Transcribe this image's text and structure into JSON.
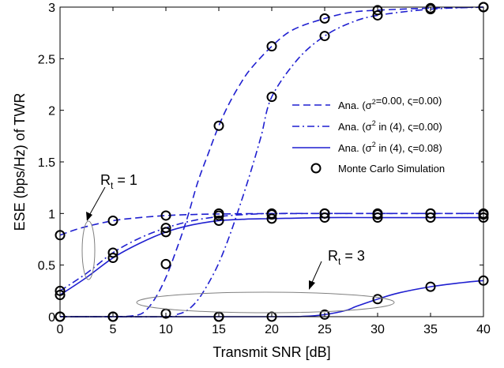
{
  "chart_data": {
    "type": "line",
    "title": "",
    "xlabel": "Transmit SNR [dB]",
    "ylabel": "ESE (bps/Hz) of TWR",
    "xlim": [
      0,
      40
    ],
    "ylim": [
      0,
      3
    ],
    "xticks": [
      0,
      5,
      10,
      15,
      20,
      25,
      30,
      35,
      40
    ],
    "yticks": [
      0,
      0.5,
      1,
      1.5,
      2,
      2.5,
      3
    ],
    "grid": false,
    "legend_position": "right",
    "line_color": "#1f1fd0",
    "marker_color": "#000000",
    "series": [
      {
        "name": "Ana. (σ²=0.00, ς=0.00)",
        "style": "dashed",
        "group": "Rt = 1",
        "x": [
          0,
          2,
          5,
          7.5,
          10,
          12.5,
          15,
          17.5,
          20,
          25,
          30,
          35,
          40
        ],
        "y": [
          0.79,
          0.86,
          0.93,
          0.96,
          0.98,
          0.99,
          0.995,
          0.998,
          0.999,
          1.0,
          1.0,
          1.0,
          1.0
        ]
      },
      {
        "name": "Ana. (σ² in (4), ς=0.00)",
        "style": "dashdot",
        "group": "Rt = 1",
        "x": [
          0,
          2.5,
          5,
          7.5,
          10,
          12.5,
          15,
          17.5,
          20,
          25,
          30,
          35,
          40
        ],
        "y": [
          0.25,
          0.42,
          0.62,
          0.76,
          0.86,
          0.93,
          0.97,
          0.99,
          1.0,
          1.0,
          1.0,
          1.0,
          1.0
        ]
      },
      {
        "name": "Ana. (σ² in (4), ς=0.08)",
        "style": "solid",
        "group": "Rt = 1",
        "x": [
          0,
          2.5,
          5,
          7.5,
          10,
          12.5,
          15,
          17.5,
          20,
          25,
          30,
          35,
          40
        ],
        "y": [
          0.21,
          0.38,
          0.57,
          0.71,
          0.82,
          0.89,
          0.93,
          0.945,
          0.95,
          0.96,
          0.96,
          0.96,
          0.96
        ]
      },
      {
        "name": "Ana. (σ²=0.00, ς=0.00)",
        "style": "dashed",
        "group": "Rt = 3",
        "x": [
          0,
          5,
          7,
          8,
          9,
          10,
          11,
          12,
          13,
          14,
          15,
          16,
          17,
          18,
          20,
          22,
          25,
          27.5,
          30,
          35,
          40
        ],
        "y": [
          0,
          0,
          0.01,
          0.05,
          0.18,
          0.38,
          0.65,
          0.95,
          1.3,
          1.58,
          1.85,
          2.07,
          2.25,
          2.4,
          2.62,
          2.78,
          2.89,
          2.95,
          2.97,
          2.99,
          3.0
        ]
      },
      {
        "name": "Ana. (σ² in (4), ς=0.00)",
        "style": "dashdot",
        "group": "Rt = 3",
        "x": [
          0,
          10,
          11,
          12,
          13,
          14,
          15,
          16,
          17,
          18,
          19,
          20,
          22.5,
          25,
          27.5,
          30,
          35,
          40
        ],
        "y": [
          0,
          0,
          0.02,
          0.06,
          0.16,
          0.32,
          0.52,
          0.78,
          1.08,
          1.4,
          1.75,
          2.13,
          2.5,
          2.72,
          2.85,
          2.92,
          2.98,
          3.0
        ]
      },
      {
        "name": "Ana. (σ² in (4), ς=0.08)",
        "style": "solid",
        "group": "Rt = 3",
        "x": [
          0,
          20,
          23,
          25,
          27,
          28,
          30,
          32,
          35,
          38,
          40
        ],
        "y": [
          0,
          0,
          0.003,
          0.02,
          0.06,
          0.1,
          0.17,
          0.23,
          0.29,
          0.33,
          0.35
        ]
      }
    ],
    "markers": {
      "name": "Monte Carlo Simulation",
      "points": [
        [
          0,
          0.79
        ],
        [
          5,
          0.93
        ],
        [
          10,
          0.98
        ],
        [
          15,
          1.0
        ],
        [
          20,
          1.0
        ],
        [
          25,
          1.0
        ],
        [
          30,
          1.0
        ],
        [
          35,
          1.0
        ],
        [
          40,
          1.0
        ],
        [
          0,
          0.25
        ],
        [
          5,
          0.62
        ],
        [
          10,
          0.86
        ],
        [
          15,
          0.98
        ],
        [
          20,
          0.99
        ],
        [
          25,
          1.0
        ],
        [
          30,
          0.99
        ],
        [
          35,
          1.0
        ],
        [
          40,
          0.99
        ],
        [
          0,
          0.21
        ],
        [
          5,
          0.57
        ],
        [
          10,
          0.82
        ],
        [
          15,
          0.93
        ],
        [
          20,
          0.95
        ],
        [
          25,
          0.96
        ],
        [
          30,
          0.96
        ],
        [
          35,
          0.96
        ],
        [
          40,
          0.96
        ],
        [
          0,
          0.0
        ],
        [
          5,
          0.0
        ],
        [
          10,
          0.51
        ],
        [
          15,
          1.85
        ],
        [
          20,
          2.62
        ],
        [
          25,
          2.89
        ],
        [
          30,
          2.97
        ],
        [
          35,
          2.99
        ],
        [
          40,
          3.0
        ],
        [
          0,
          0.0
        ],
        [
          5,
          0.0
        ],
        [
          10,
          0.03
        ],
        [
          15,
          0.0
        ],
        [
          20,
          2.13
        ],
        [
          25,
          2.72
        ],
        [
          30,
          2.92
        ],
        [
          35,
          2.98
        ],
        [
          40,
          3.0
        ],
        [
          15,
          0.0
        ],
        [
          20,
          0.0
        ],
        [
          25,
          0.02
        ],
        [
          30,
          0.17
        ],
        [
          35,
          0.29
        ],
        [
          40,
          0.35
        ]
      ]
    },
    "annotations": [
      {
        "id": "rt1",
        "label": "R",
        "subscript": "t",
        "suffix": " = 1"
      },
      {
        "id": "rt3",
        "label": "R",
        "subscript": "t",
        "suffix": " = 3"
      }
    ]
  }
}
